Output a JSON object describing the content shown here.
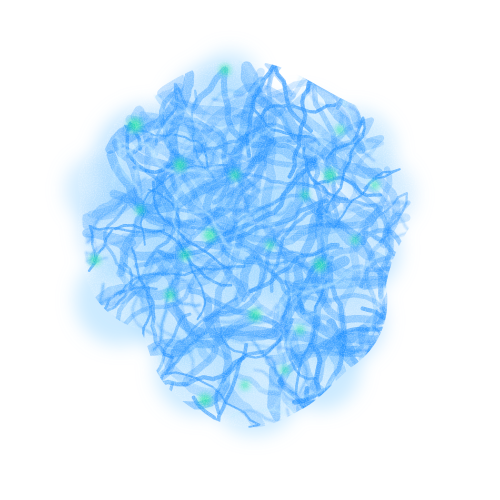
{
  "image": {
    "background_color": "#ffffff",
    "palette": {
      "filament_blue": "#1e90ff",
      "haze_blue": "#8fd0ff",
      "light_cyan": "#bfeaff",
      "node_green": "#19e6a0"
    }
  }
}
